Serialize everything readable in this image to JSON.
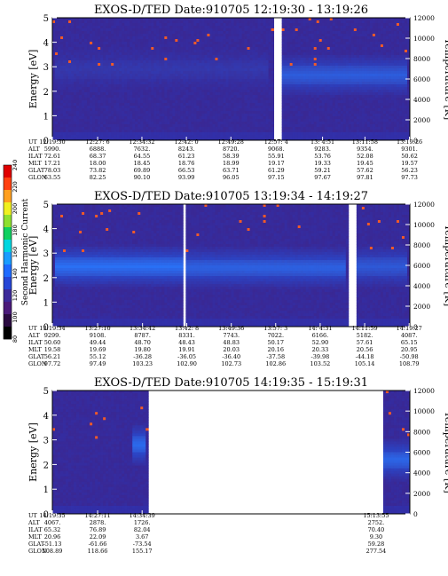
{
  "chart_data": [
    {
      "type": "heatmap",
      "title": "EXOS-D/TED   Date:910705   12:19:30 - 13:19:26",
      "ylabel": "Energy [eV]",
      "y2label": "Temperature [K]",
      "ylim": [
        0,
        5
      ],
      "y2lim": [
        0,
        12000
      ],
      "y_ticks": [
        "0",
        "1",
        "2",
        "3",
        "4",
        "5"
      ],
      "y2_ticks": [
        "0",
        "2000",
        "4000",
        "6000",
        "8000",
        "10000",
        "12000"
      ],
      "gaps": [
        [
          12.946,
          12.965
        ]
      ],
      "bands": [
        {
          "from": 12.33,
          "to": 12.93,
          "center_ev": 2.9,
          "strength": 0.15
        },
        {
          "from": 12.97,
          "to": 13.32,
          "center_ev": 2.65,
          "strength": 0.55
        }
      ],
      "ephemeris": {
        "labels": [
          "UT",
          "ALT",
          "ILAT",
          "MLT",
          "GLAT",
          "GLON"
        ],
        "columns": [
          [
            "12:19:30",
            "5990.",
            "72.61",
            "17.21",
            "78.03",
            "63.55"
          ],
          [
            "12:27: 6",
            "6888.",
            "68.37",
            "18.00",
            "73.82",
            "82.25"
          ],
          [
            "12:34:32",
            "7632.",
            "64.55",
            "18.45",
            "69.89",
            "90.10"
          ],
          [
            "12:42: 0",
            "8243.",
            "61.23",
            "18.76",
            "66.53",
            "93.99"
          ],
          [
            "12:49:28",
            "8720.",
            "58.39",
            "18.99",
            "63.71",
            "96.05"
          ],
          [
            "12:57: 4",
            "9068.",
            "55.91",
            "19.17",
            "61.29",
            "97.15"
          ],
          [
            "13: 4:51",
            "9283.",
            "53.76",
            "19.33",
            "59.21",
            "97.67"
          ],
          [
            "13:11:58",
            "9354.",
            "52.08",
            "19.45",
            "57.62",
            "97.81"
          ],
          [
            "13:19:26",
            "9301.",
            "50.62",
            "19.57",
            "56.23",
            "97.73"
          ]
        ]
      }
    },
    {
      "type": "heatmap",
      "title": "EXOS-D/TED   Date:910705   13:19:34 - 14:19:27",
      "ylabel": "Energy [eV]",
      "y2label": "Temperature [K]",
      "ylim": [
        0,
        5
      ],
      "y2lim": [
        0,
        12000
      ],
      "y_ticks": [
        "0",
        "1",
        "2",
        "3",
        "4",
        "5"
      ],
      "y2_ticks": [
        "0",
        "2000",
        "4000",
        "6000",
        "8000",
        "10000",
        "12000"
      ],
      "gaps": [
        [
          13.689,
          13.699
        ],
        [
          14.152,
          14.178
        ]
      ],
      "bands": [
        {
          "from": 13.33,
          "to": 13.69,
          "center_ev": 2.45,
          "strength": 0.75
        },
        {
          "from": 13.7,
          "to": 14.15,
          "center_ev": 2.4,
          "strength": 0.6
        },
        {
          "from": 14.18,
          "to": 14.32,
          "center_ev": 2.45,
          "strength": 0.5
        }
      ],
      "ephemeris": {
        "labels": [
          "UT",
          "ALT",
          "ILAT",
          "MLT",
          "GLAT",
          "GLON"
        ],
        "columns": [
          [
            "13:19:34",
            "9299.",
            "50.60",
            "19.58",
            "56.21",
            "97.72"
          ],
          [
            "13:27:10",
            "9108.",
            "49.44",
            "19.69",
            "55.12",
            "97.49"
          ],
          [
            "13:34:42",
            "8787.",
            "48.70",
            "19.80",
            "-36.28",
            "103.23"
          ],
          [
            "13:42: 8",
            "8331.",
            "48.43",
            "19.91",
            "-36.05",
            "102.90"
          ],
          [
            "13:49:36",
            "7743.",
            "48.83",
            "20.03",
            "-36.40",
            "102.73"
          ],
          [
            "13:57: 3",
            "7022.",
            "50.17",
            "20.16",
            "-37.58",
            "102.86"
          ],
          [
            "14: 4:31",
            "6166.",
            "52.90",
            "20.33",
            "-39.98",
            "103.52"
          ],
          [
            "14:11:59",
            "5182.",
            "57.61",
            "20.56",
            "-44.18",
            "105.14"
          ],
          [
            "14:19:27",
            "4087.",
            "65.15",
            "20.95",
            "-50.98",
            "108.79"
          ]
        ]
      }
    },
    {
      "type": "heatmap",
      "title": "EXOS-D/TED   Date:910705   14:19:35 - 15:19:31",
      "ylabel": "Energy [eV]",
      "y2label": "Temperature [K]",
      "ylim": [
        0,
        5
      ],
      "y2lim": [
        0,
        12000
      ],
      "y_ticks": [
        "0",
        "1",
        "2",
        "3",
        "4",
        "5"
      ],
      "y2_ticks": [
        "0",
        "2000",
        "4000",
        "6000",
        "8000",
        "10000",
        "12000"
      ],
      "gaps": [
        [
          14.592,
          15.253
        ]
      ],
      "bands": [
        {
          "from": 14.55,
          "to": 14.59,
          "center_ev": 2.8,
          "strength": 0.7
        },
        {
          "from": 15.255,
          "to": 15.33,
          "center_ev": 2.2,
          "strength": 0.65
        }
      ],
      "ephemeris": {
        "labels": [
          "UT",
          "ALT",
          "ILAT",
          "MLT",
          "GLAT",
          "GLON"
        ],
        "columns": [
          [
            "14:19:35",
            "4067.",
            "65.32",
            "20.96",
            "-51.13",
            "108.89"
          ],
          [
            "14:27:11",
            "2878.",
            "76.89",
            "22.09",
            "-61.66",
            "118.66"
          ],
          [
            "14:34:39",
            "1726.",
            "82.04",
            "3.67",
            "-73.54",
            "155.17"
          ],
          [
            "15:13:55",
            "2752.",
            "70.40",
            "9.30",
            "59.28",
            "277.54"
          ]
        ]
      }
    }
  ],
  "colorbar": {
    "label": "Second Harmonic Current",
    "ticks": [
      "80",
      "100",
      "120",
      "140",
      "160",
      "180",
      "200",
      "220",
      "240"
    ],
    "colors": [
      "#000000",
      "#2a0a40",
      "#4b1a7a",
      "#3c2a9a",
      "#2646d6",
      "#1f6bff",
      "#1b9dff",
      "#00d6e0",
      "#10d060",
      "#8ee030",
      "#f0f020",
      "#ffa020",
      "#ff4010",
      "#e00000"
    ]
  }
}
